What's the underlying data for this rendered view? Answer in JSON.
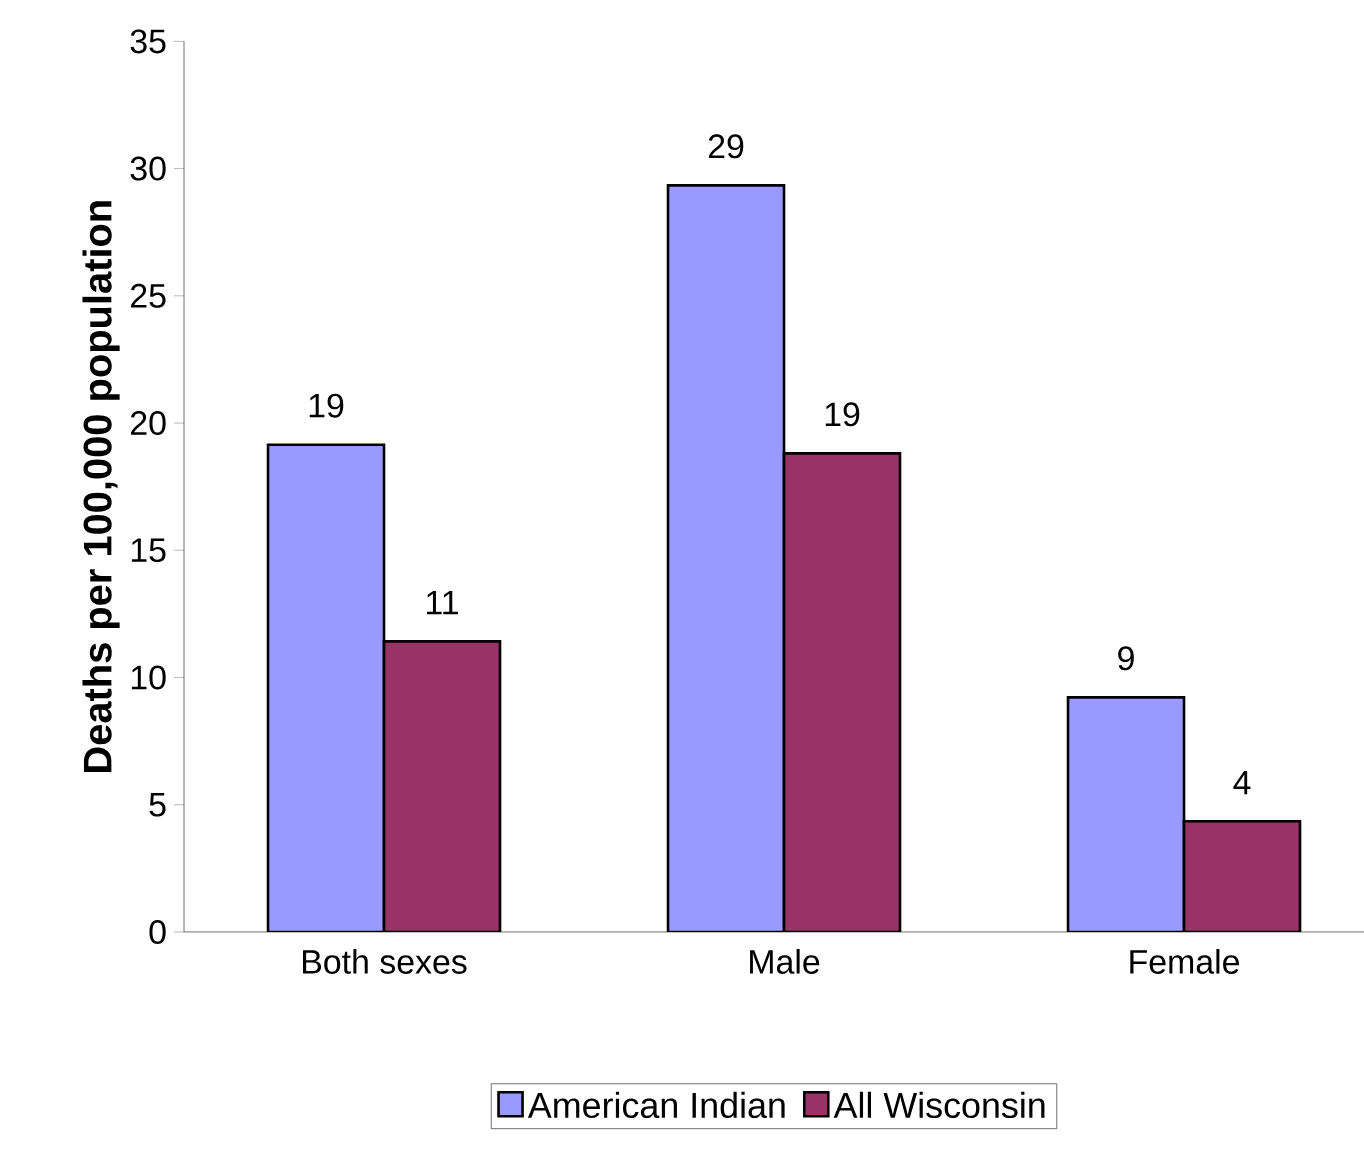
{
  "chart_data": {
    "type": "bar",
    "ylabel": "Deaths per 100,000 population",
    "categories": [
      "Both sexes",
      "Male",
      "Female"
    ],
    "series": [
      {
        "name": "American Indian",
        "color": "#9999ff",
        "values": [
          19.15,
          29.34,
          9.22
        ],
        "value_labels": [
          "19",
          "29",
          "9"
        ]
      },
      {
        "name": "All Wisconsin",
        "color": "#993366",
        "values": [
          11.42,
          18.81,
          4.35
        ],
        "value_labels": [
          "11",
          "19",
          "4"
        ]
      }
    ],
    "ylim": [
      0,
      35
    ],
    "yticks": [
      0,
      5,
      10,
      15,
      20,
      25,
      30,
      35
    ],
    "grid": false,
    "legend": "bottom"
  }
}
